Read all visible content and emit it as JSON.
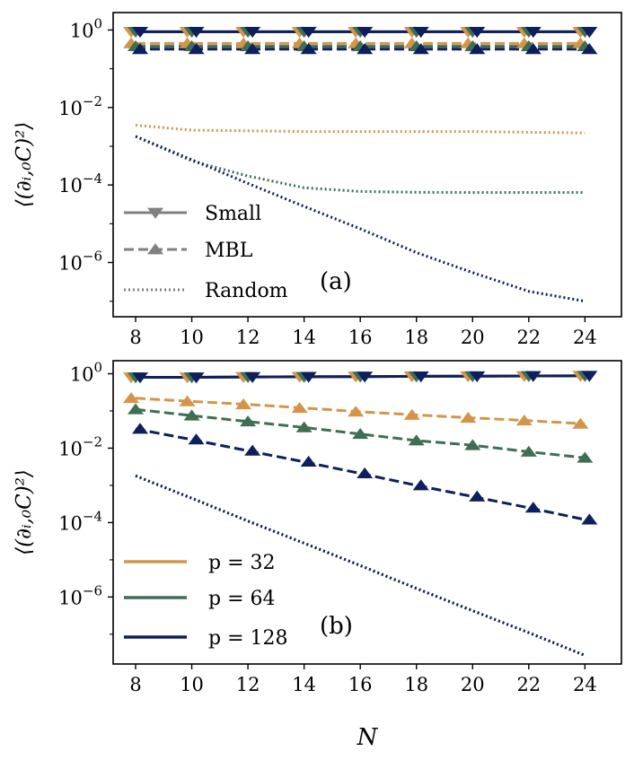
{
  "chart_data": [
    {
      "type": "line",
      "panel_label": "(a)",
      "ylabel": "⟨(∂ᵢ,₀C)²⟩",
      "xlabel": "",
      "yscale": "log",
      "xlim": [
        7.2,
        25.3
      ],
      "ylim_log10": [
        -7.4,
        0.45
      ],
      "x_ticks": [
        "8",
        "10",
        "12",
        "14",
        "16",
        "18",
        "20",
        "22",
        "24"
      ],
      "y_ticks": [
        {
          "label": "10",
          "exp": "0"
        },
        {
          "label": "10",
          "exp": "−2"
        },
        {
          "label": "10",
          "exp": "−4"
        },
        {
          "label": "10",
          "exp": "−6"
        }
      ],
      "x": [
        8,
        10,
        12,
        14,
        16,
        18,
        20,
        22,
        24
      ],
      "colors": {
        "p32": "#d4954a",
        "p64": "#3f6e55",
        "p128": "#0d1f5c",
        "legend_gray": "#808080"
      },
      "legend": {
        "position": "lower-left",
        "entries": [
          {
            "label": "Small",
            "style": "solid",
            "marker": "triangle-down"
          },
          {
            "label": "MBL",
            "style": "dashed",
            "marker": "triangle-up"
          },
          {
            "label": "Random",
            "style": "dotted",
            "marker": "none"
          }
        ]
      },
      "series": [
        {
          "p": 32,
          "style": "small",
          "values": [
            0.9,
            0.9,
            0.9,
            0.9,
            0.9,
            0.9,
            0.9,
            0.9,
            0.9
          ]
        },
        {
          "p": 64,
          "style": "small",
          "values": [
            0.9,
            0.9,
            0.9,
            0.9,
            0.9,
            0.9,
            0.9,
            0.9,
            0.9
          ]
        },
        {
          "p": 128,
          "style": "small",
          "values": [
            0.9,
            0.9,
            0.9,
            0.9,
            0.9,
            0.9,
            0.9,
            0.9,
            0.9
          ]
        },
        {
          "p": 32,
          "style": "mbl",
          "values": [
            0.45,
            0.45,
            0.45,
            0.45,
            0.45,
            0.45,
            0.45,
            0.45,
            0.45
          ]
        },
        {
          "p": 64,
          "style": "mbl",
          "values": [
            0.38,
            0.38,
            0.38,
            0.38,
            0.38,
            0.38,
            0.38,
            0.38,
            0.38
          ]
        },
        {
          "p": 128,
          "style": "mbl",
          "values": [
            0.32,
            0.32,
            0.32,
            0.32,
            0.32,
            0.32,
            0.32,
            0.32,
            0.32
          ]
        },
        {
          "p": 32,
          "style": "random",
          "values": [
            0.0035,
            0.0026,
            0.0025,
            0.0024,
            0.0024,
            0.0024,
            0.0024,
            0.0023,
            0.0022
          ]
        },
        {
          "p": 64,
          "style": "random",
          "values": [
            0.0018,
            0.00042,
            0.00017,
            8.5e-05,
            6.8e-05,
            6.5e-05,
            6.4e-05,
            6.4e-05,
            6.4e-05
          ]
        },
        {
          "p": 128,
          "style": "random",
          "values": [
            0.0018,
            0.00045,
            0.00011,
            2.8e-05,
            7.4e-06,
            1.8e-06,
            5.5e-07,
            1.8e-07,
            1e-07
          ]
        }
      ]
    },
    {
      "type": "line",
      "panel_label": "(b)",
      "ylabel": "⟨(∂ᵢ,₀C)²⟩",
      "xlabel": "N",
      "yscale": "log",
      "xlim": [
        7.2,
        25.3
      ],
      "ylim_log10": [
        -7.8,
        0.35
      ],
      "x_ticks": [
        "8",
        "10",
        "12",
        "14",
        "16",
        "18",
        "20",
        "22",
        "24"
      ],
      "y_ticks": [
        {
          "label": "10",
          "exp": "0"
        },
        {
          "label": "10",
          "exp": "−2"
        },
        {
          "label": "10",
          "exp": "−4"
        },
        {
          "label": "10",
          "exp": "−6"
        }
      ],
      "x": [
        8,
        10,
        12,
        14,
        16,
        18,
        20,
        22,
        24
      ],
      "legend": {
        "position": "lower-left",
        "entries": [
          {
            "label": "p = 32",
            "color": "#d4954a"
          },
          {
            "label": "p = 64",
            "color": "#3f6e55"
          },
          {
            "label": "p = 128",
            "color": "#0d1f5c"
          }
        ]
      },
      "series": [
        {
          "p": 32,
          "style": "small",
          "values": [
            0.8,
            0.8,
            0.82,
            0.83,
            0.84,
            0.85,
            0.86,
            0.87,
            0.88
          ]
        },
        {
          "p": 64,
          "style": "small",
          "values": [
            0.8,
            0.8,
            0.82,
            0.83,
            0.84,
            0.85,
            0.86,
            0.87,
            0.88
          ]
        },
        {
          "p": 128,
          "style": "small",
          "values": [
            0.8,
            0.8,
            0.82,
            0.83,
            0.84,
            0.85,
            0.86,
            0.87,
            0.88
          ]
        },
        {
          "p": 32,
          "style": "mbl",
          "values": [
            0.22,
            0.18,
            0.15,
            0.12,
            0.095,
            0.078,
            0.065,
            0.055,
            0.045
          ]
        },
        {
          "p": 64,
          "style": "mbl",
          "values": [
            0.11,
            0.075,
            0.052,
            0.036,
            0.024,
            0.016,
            0.012,
            0.008,
            0.0055
          ]
        },
        {
          "p": 128,
          "style": "mbl",
          "values": [
            0.033,
            0.017,
            0.0085,
            0.0043,
            0.0021,
            0.001,
            0.0005,
            0.00025,
            0.00012
          ]
        },
        {
          "p": 32,
          "style": "random",
          "values": [
            0.0018,
            0.00045,
            0.00011,
            2.8e-05,
            7e-06,
            1.7e-06,
            4.3e-07,
            1.1e-07,
            2.7e-08
          ]
        },
        {
          "p": 64,
          "style": "random",
          "values": [
            0.0018,
            0.00045,
            0.00011,
            2.8e-05,
            7e-06,
            1.7e-06,
            4.3e-07,
            1.1e-07,
            2.7e-08
          ]
        },
        {
          "p": 128,
          "style": "random",
          "values": [
            0.0018,
            0.00045,
            0.00011,
            2.8e-05,
            7e-06,
            1.7e-06,
            4.3e-07,
            1.1e-07,
            2.7e-08
          ]
        }
      ]
    }
  ]
}
